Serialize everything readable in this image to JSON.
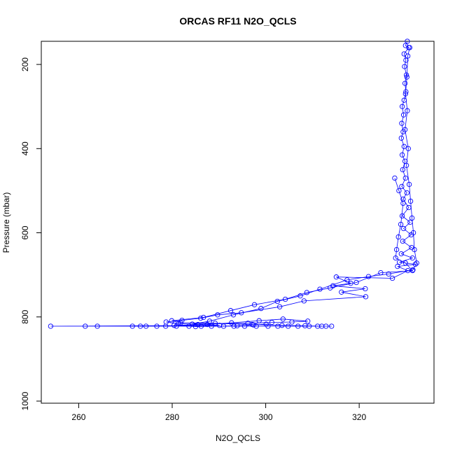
{
  "chart_data": {
    "type": "scatter",
    "title": "ORCAS RF11 N2O_QCLS",
    "xlabel": "N2O_QCLS",
    "ylabel": "Pressure (mbar)",
    "xlim": [
      252,
      336
    ],
    "ylim": [
      1005,
      145
    ],
    "y_reversed": true,
    "x_ticks": [
      260,
      280,
      300,
      320
    ],
    "y_ticks": [
      200,
      400,
      600,
      800,
      1000
    ],
    "grid": false,
    "legend": "none",
    "color": "#0000ff",
    "marker": "open-circle",
    "line": true,
    "series": [
      {
        "points": [
          [
            330.3,
            145
          ],
          [
            329.9,
            155
          ],
          [
            330.6,
            160
          ],
          [
            329.6,
            175
          ],
          [
            330.0,
            190
          ],
          [
            329.7,
            205
          ],
          [
            330.1,
            225
          ],
          [
            329.8,
            245
          ],
          [
            330.0,
            265
          ],
          [
            329.6,
            285
          ],
          [
            329.2,
            300
          ],
          [
            329.5,
            320
          ],
          [
            329.1,
            340
          ],
          [
            329.4,
            360
          ],
          [
            329.0,
            375
          ],
          [
            329.6,
            395
          ],
          [
            329.2,
            415
          ],
          [
            329.8,
            430
          ],
          [
            329.3,
            450
          ],
          [
            329.9,
            470
          ],
          [
            329.1,
            490
          ],
          [
            330.2,
            505
          ],
          [
            329.4,
            520
          ],
          [
            330.6,
            540
          ],
          [
            329.2,
            560
          ],
          [
            330.9,
            575
          ],
          [
            329.5,
            590
          ],
          [
            331.1,
            605
          ],
          [
            329.3,
            620
          ],
          [
            331.2,
            635
          ],
          [
            329.0,
            650
          ],
          [
            331.4,
            660
          ],
          [
            328.6,
            670
          ],
          [
            332.0,
            675
          ],
          [
            328.2,
            680
          ],
          [
            330.4,
            690
          ],
          [
            327.1,
            708
          ],
          [
            315.1,
            705
          ],
          [
            318.2,
            720
          ],
          [
            314.4,
            726
          ],
          [
            321.3,
            733
          ],
          [
            316.2,
            741
          ],
          [
            321.4,
            752
          ],
          [
            308.2,
            762
          ],
          [
            303.0,
            776
          ],
          [
            294.8,
            790
          ],
          [
            289.7,
            795
          ],
          [
            286.1,
            803
          ],
          [
            282.1,
            808
          ],
          [
            278.7,
            812
          ],
          [
            281.3,
            816
          ],
          [
            285.5,
            818
          ],
          [
            290.1,
            820
          ],
          [
            254.0,
            822
          ],
          [
            261.4,
            822
          ],
          [
            264.0,
            822
          ],
          [
            271.5,
            822
          ],
          [
            273.2,
            822
          ],
          [
            274.4,
            822
          ],
          [
            276.7,
            822
          ],
          [
            278.6,
            822
          ],
          [
            280.9,
            822
          ],
          [
            283.6,
            822
          ],
          [
            286.2,
            822
          ],
          [
            288.4,
            822
          ],
          [
            291.0,
            822
          ],
          [
            293.2,
            822
          ],
          [
            295.5,
            822
          ],
          [
            298.0,
            822
          ],
          [
            300.5,
            822
          ],
          [
            302.6,
            822
          ],
          [
            304.8,
            822
          ],
          [
            306.9,
            822
          ],
          [
            309.3,
            822
          ],
          [
            311.1,
            822
          ],
          [
            312.9,
            822
          ],
          [
            314.1,
            822
          ]
        ]
      },
      {
        "points": [
          [
            330.8,
            160
          ],
          [
            330.4,
            180
          ],
          [
            330.2,
            230
          ],
          [
            329.9,
            270
          ],
          [
            330.3,
            310
          ],
          [
            329.8,
            355
          ],
          [
            330.5,
            400
          ],
          [
            330.1,
            440
          ],
          [
            330.7,
            485
          ],
          [
            331.0,
            525
          ],
          [
            331.3,
            565
          ],
          [
            331.6,
            600
          ],
          [
            331.8,
            640
          ],
          [
            332.3,
            672
          ],
          [
            331.5,
            688
          ],
          [
            326.3,
            698
          ],
          [
            322.0,
            704
          ],
          [
            317.4,
            712
          ],
          [
            311.6,
            734
          ],
          [
            307.4,
            750
          ],
          [
            302.5,
            763
          ],
          [
            299.0,
            780
          ],
          [
            293.1,
            795
          ],
          [
            288.0,
            810
          ],
          [
            284.3,
            817
          ],
          [
            296.2,
            815
          ],
          [
            301.3,
            813
          ],
          [
            305.6,
            812
          ],
          [
            309.0,
            810
          ],
          [
            303.7,
            805
          ],
          [
            298.6,
            809
          ],
          [
            292.7,
            814
          ],
          [
            287.5,
            818
          ],
          [
            280.4,
            820
          ],
          [
            285.0,
            823
          ],
          [
            293.9,
            821
          ],
          [
            297.4,
            819
          ],
          [
            300.1,
            817
          ]
        ]
      },
      {
        "points": [
          [
            327.6,
            470
          ],
          [
            328.5,
            500
          ],
          [
            329.4,
            530
          ],
          [
            328.9,
            580
          ],
          [
            328.4,
            610
          ],
          [
            328.0,
            640
          ],
          [
            327.8,
            660
          ],
          [
            329.9,
            672
          ],
          [
            331.4,
            690
          ],
          [
            324.6,
            695
          ],
          [
            319.4,
            718
          ],
          [
            313.8,
            731
          ],
          [
            308.8,
            742
          ],
          [
            304.2,
            758
          ],
          [
            297.6,
            771
          ],
          [
            292.5,
            785
          ],
          [
            286.7,
            801
          ],
          [
            279.9,
            809
          ],
          [
            281.8,
            814
          ],
          [
            289.2,
            815
          ],
          [
            297.1,
            818
          ],
          [
            303.5,
            820
          ],
          [
            308.4,
            821
          ],
          [
            312.0,
            822
          ]
        ]
      }
    ]
  }
}
